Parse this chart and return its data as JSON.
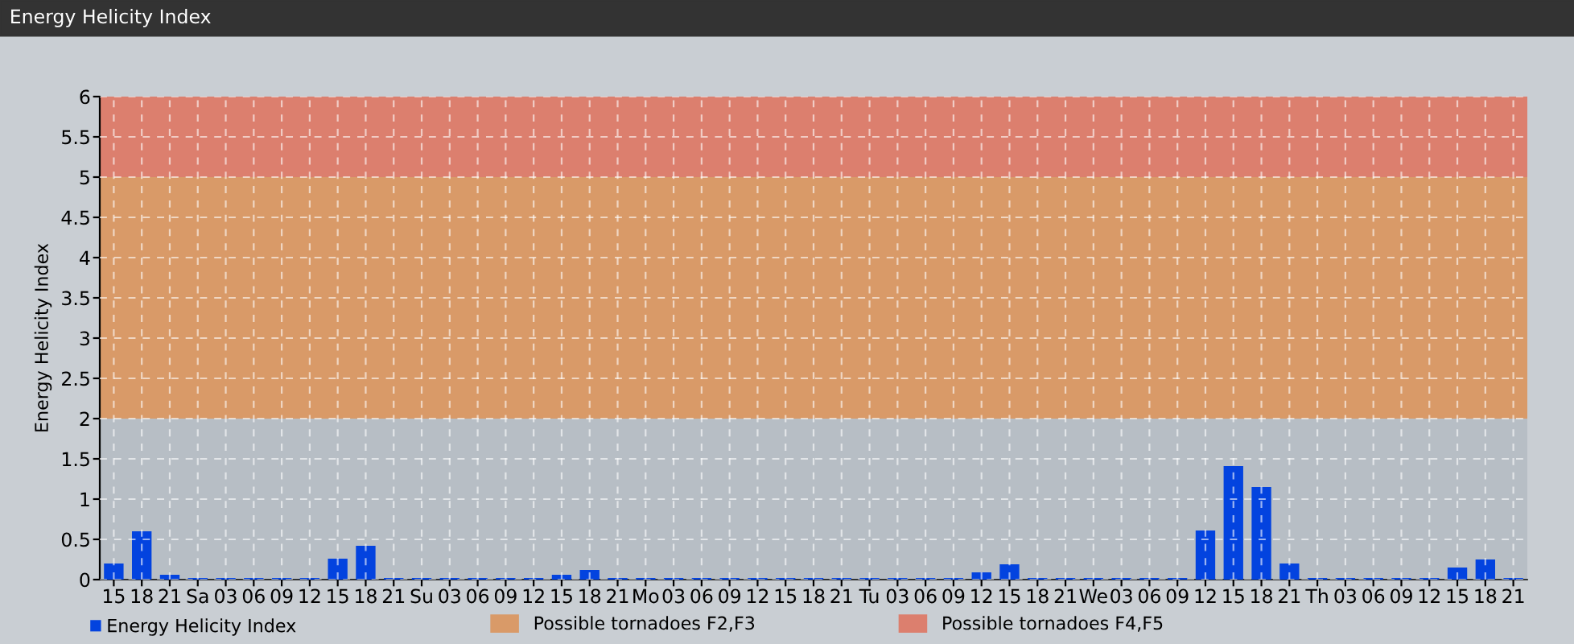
{
  "chart_data": {
    "type": "bar",
    "title": "Energy Helicity Index",
    "ylabel": "Energy Helicity Index",
    "categories": [
      "15",
      "18",
      "21",
      "Sa",
      "03",
      "06",
      "09",
      "12",
      "15",
      "18",
      "21",
      "Su",
      "03",
      "06",
      "09",
      "12",
      "15",
      "18",
      "21",
      "Mo",
      "03",
      "06",
      "09",
      "12",
      "15",
      "18",
      "21",
      "Tu",
      "03",
      "06",
      "09",
      "12",
      "15",
      "18",
      "21",
      "We",
      "03",
      "06",
      "09",
      "12",
      "15",
      "18",
      "21",
      "Th",
      "03",
      "06",
      "09",
      "12",
      "15",
      "18",
      "21"
    ],
    "series": [
      {
        "name": "Energy Helicity Index",
        "color": "#0343df",
        "values": [
          0.2,
          0.6,
          0.06,
          0.02,
          0.02,
          0.02,
          0.02,
          0.02,
          0.26,
          0.42,
          0.02,
          0.02,
          0.02,
          0.02,
          0.02,
          0.02,
          0.06,
          0.12,
          0.02,
          0.02,
          0.02,
          0.02,
          0.02,
          0.02,
          0.02,
          0.02,
          0.02,
          0.02,
          0.02,
          0.02,
          0.02,
          0.09,
          0.19,
          0.02,
          0.02,
          0.02,
          0.02,
          0.02,
          0.02,
          0.61,
          1.41,
          1.15,
          0.2,
          0.02,
          0.02,
          0.02,
          0.02,
          0.02,
          0.15,
          0.25,
          0.02
        ]
      }
    ],
    "ylim": [
      0,
      6
    ],
    "yticks": [
      0,
      0.5,
      1,
      1.5,
      2,
      2.5,
      3,
      3.5,
      4,
      4.5,
      5,
      5.5,
      6
    ],
    "bands": [
      {
        "axis": "y",
        "from": 2,
        "to": 5,
        "label": "Possible tornadoes F2,F3",
        "color": "#d99a68"
      },
      {
        "axis": "y",
        "from": 5,
        "to": 6,
        "label": "Possible tornadoes F4,F5",
        "color": "#dc7f6e"
      }
    ],
    "grid": true,
    "legend": "bottom left"
  }
}
